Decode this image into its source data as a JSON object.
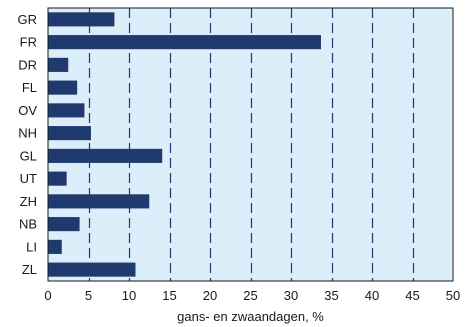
{
  "chart_data": {
    "type": "bar",
    "orientation": "horizontal",
    "categories": [
      "GR",
      "FR",
      "DR",
      "FL",
      "OV",
      "NH",
      "GL",
      "UT",
      "ZH",
      "NB",
      "LI",
      "ZL"
    ],
    "values": [
      8.2,
      33.7,
      2.5,
      3.6,
      4.5,
      5.3,
      14.1,
      2.3,
      12.5,
      3.9,
      1.7,
      10.8
    ],
    "xlabel": "gans- en zwaandagen, %",
    "ylabel": "",
    "xlim": [
      0,
      50
    ],
    "xticks": [
      0,
      5,
      10,
      15,
      20,
      25,
      30,
      35,
      40,
      45,
      50
    ],
    "grid": "vertical dashed",
    "colors": {
      "bar": "#1f3a6e",
      "plot_background": "#dceefa",
      "grid": "#1f3a6e",
      "frame": "#1a1a1a"
    }
  }
}
